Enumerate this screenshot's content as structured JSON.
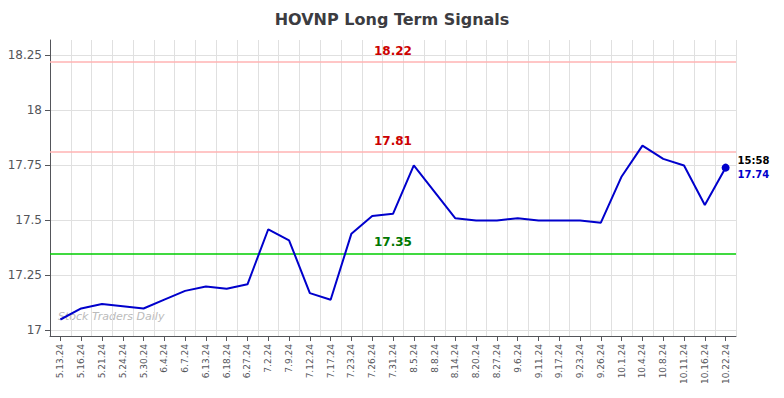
{
  "chart_data": {
    "type": "line",
    "title": "HOVNP Long Term Signals",
    "categories": [
      "5.13.24",
      "5.16.24",
      "5.21.24",
      "5.24.24",
      "5.30.24",
      "6.4.24",
      "6.7.24",
      "6.13.24",
      "6.18.24",
      "6.27.24",
      "7.2.24",
      "7.9.24",
      "7.12.24",
      "7.17.24",
      "7.23.24",
      "7.26.24",
      "7.31.24",
      "8.5.24",
      "8.8.24",
      "8.14.24",
      "8.20.24",
      "8.27.24",
      "9.6.24",
      "9.11.24",
      "9.17.24",
      "9.23.24",
      "9.26.24",
      "10.1.24",
      "10.4.24",
      "10.8.24",
      "10.11.24",
      "10.16.24",
      "10.22.24"
    ],
    "values": [
      17.05,
      17.1,
      17.12,
      17.11,
      17.1,
      17.14,
      17.18,
      17.2,
      17.19,
      17.21,
      17.46,
      17.41,
      17.17,
      17.14,
      17.44,
      17.52,
      17.53,
      17.75,
      17.63,
      17.51,
      17.5,
      17.5,
      17.51,
      17.5,
      17.5,
      17.5,
      17.49,
      17.7,
      17.84,
      17.78,
      17.75,
      17.57,
      17.74
    ],
    "color": "#0000cc",
    "ylim": [
      16.975,
      18.32
    ],
    "yticks": [
      17,
      17.25,
      17.5,
      17.75,
      18,
      18.25
    ],
    "grid": true,
    "reference_lines": [
      {
        "value": 18.22,
        "label": "18.22",
        "color": "#ffb3b3",
        "label_color": "#cc0000"
      },
      {
        "value": 17.81,
        "label": "17.81",
        "color": "#ffb3b3",
        "label_color": "#cc0000"
      },
      {
        "value": 17.35,
        "label": "17.35",
        "color": "#00cc00",
        "label_color": "#007700"
      }
    ],
    "last_point": {
      "marker": "circle",
      "color": "#0000cc",
      "time_label": "15:58",
      "time_color": "#000000",
      "value_label": "17.74",
      "value_color": "#0000cc"
    },
    "watermark": "Stock Traders Daily",
    "watermark_color": "#bbbbbb"
  }
}
